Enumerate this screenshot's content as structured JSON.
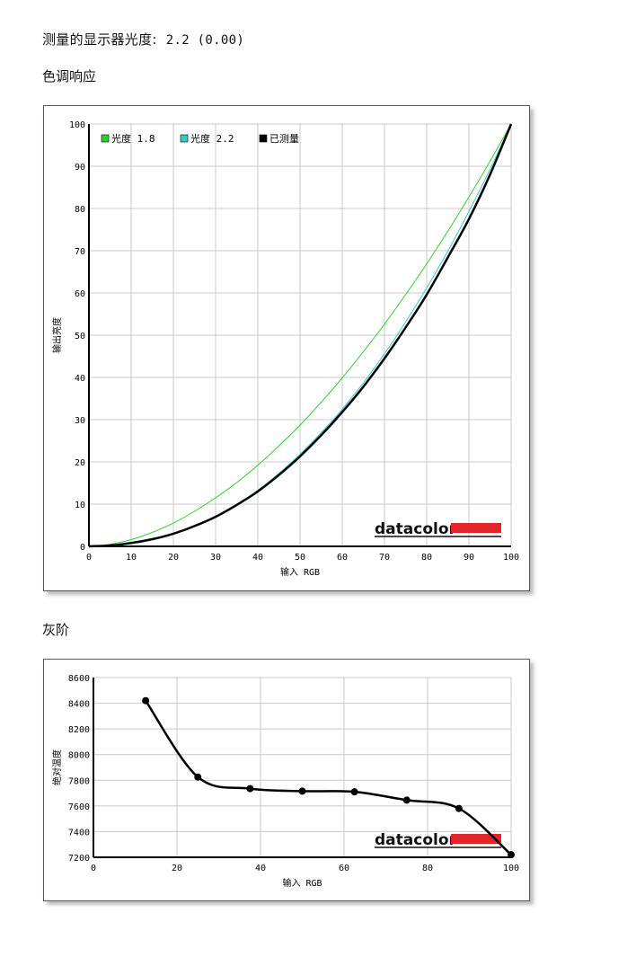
{
  "header": {
    "measured_label": "测量的显示器光度:",
    "measured_value": "2.2 (0.00)"
  },
  "sections": {
    "tone_response": "色调响应",
    "grayscale": "灰阶"
  },
  "logo": {
    "text": "datacolor",
    "bar_color": "#e0262b"
  },
  "colors": {
    "gamma18": "#33cc33",
    "gamma22": "#33cccc",
    "measured": "#000000",
    "grid": "#c8c8c8"
  },
  "chart_data": [
    {
      "type": "line",
      "title": "",
      "xlabel": "输入 RGB",
      "ylabel": "输出亮度",
      "xlim": [
        0,
        100
      ],
      "ylim": [
        0,
        100
      ],
      "xticks": [
        0,
        10,
        20,
        30,
        40,
        50,
        60,
        70,
        80,
        90,
        100
      ],
      "yticks": [
        0,
        10,
        20,
        30,
        40,
        50,
        60,
        70,
        80,
        90,
        100
      ],
      "grid": true,
      "legend_position": "top-left",
      "series": [
        {
          "name": "光度 1.8",
          "color": "#33cc33",
          "x": [
            0,
            5,
            10,
            15,
            20,
            25,
            30,
            35,
            40,
            45,
            50,
            55,
            60,
            65,
            70,
            75,
            80,
            85,
            90,
            95,
            100
          ],
          "y": [
            0,
            0.5,
            1.6,
            3.3,
            5.5,
            8.3,
            11.5,
            15.1,
            19.2,
            23.8,
            28.7,
            34.1,
            39.9,
            46.1,
            52.6,
            59.6,
            66.9,
            74.6,
            82.7,
            91.2,
            100
          ]
        },
        {
          "name": "光度 2.2",
          "color": "#33cccc",
          "x": [
            0,
            5,
            10,
            15,
            20,
            25,
            30,
            35,
            40,
            45,
            50,
            55,
            60,
            65,
            70,
            75,
            80,
            85,
            90,
            95,
            100
          ],
          "y": [
            0,
            0.1,
            0.6,
            1.5,
            2.9,
            4.8,
            7.1,
            9.9,
            13.3,
            17.3,
            21.8,
            26.9,
            32.5,
            38.7,
            45.6,
            53.1,
            61.2,
            69.9,
            79.3,
            89.3,
            100
          ]
        },
        {
          "name": "已测量",
          "color": "#000000",
          "x": [
            0,
            5,
            10,
            15,
            20,
            25,
            30,
            35,
            40,
            45,
            50,
            55,
            60,
            65,
            70,
            75,
            80,
            85,
            90,
            95,
            100
          ],
          "y": [
            0,
            0.2,
            0.8,
            1.7,
            3.0,
            4.8,
            7.0,
            9.8,
            13.0,
            16.9,
            21.3,
            26.3,
            31.8,
            37.8,
            44.5,
            51.8,
            59.6,
            68.4,
            77.5,
            88.0,
            100
          ]
        }
      ]
    },
    {
      "type": "line",
      "title": "",
      "xlabel": "输入 RGB",
      "ylabel": "绝对温度",
      "xlim": [
        0,
        100
      ],
      "ylim": [
        7200,
        8600
      ],
      "xticks": [
        0,
        20,
        40,
        60,
        80,
        100
      ],
      "yticks": [
        7200,
        7400,
        7600,
        7800,
        8000,
        8200,
        8400,
        8600
      ],
      "grid": true,
      "series": [
        {
          "name": "",
          "color": "#000000",
          "x": [
            12.5,
            25,
            37.5,
            50,
            62.5,
            75,
            87.5,
            100
          ],
          "y": [
            8420,
            7825,
            7735,
            7715,
            7710,
            7645,
            7580,
            7220
          ]
        }
      ]
    }
  ]
}
